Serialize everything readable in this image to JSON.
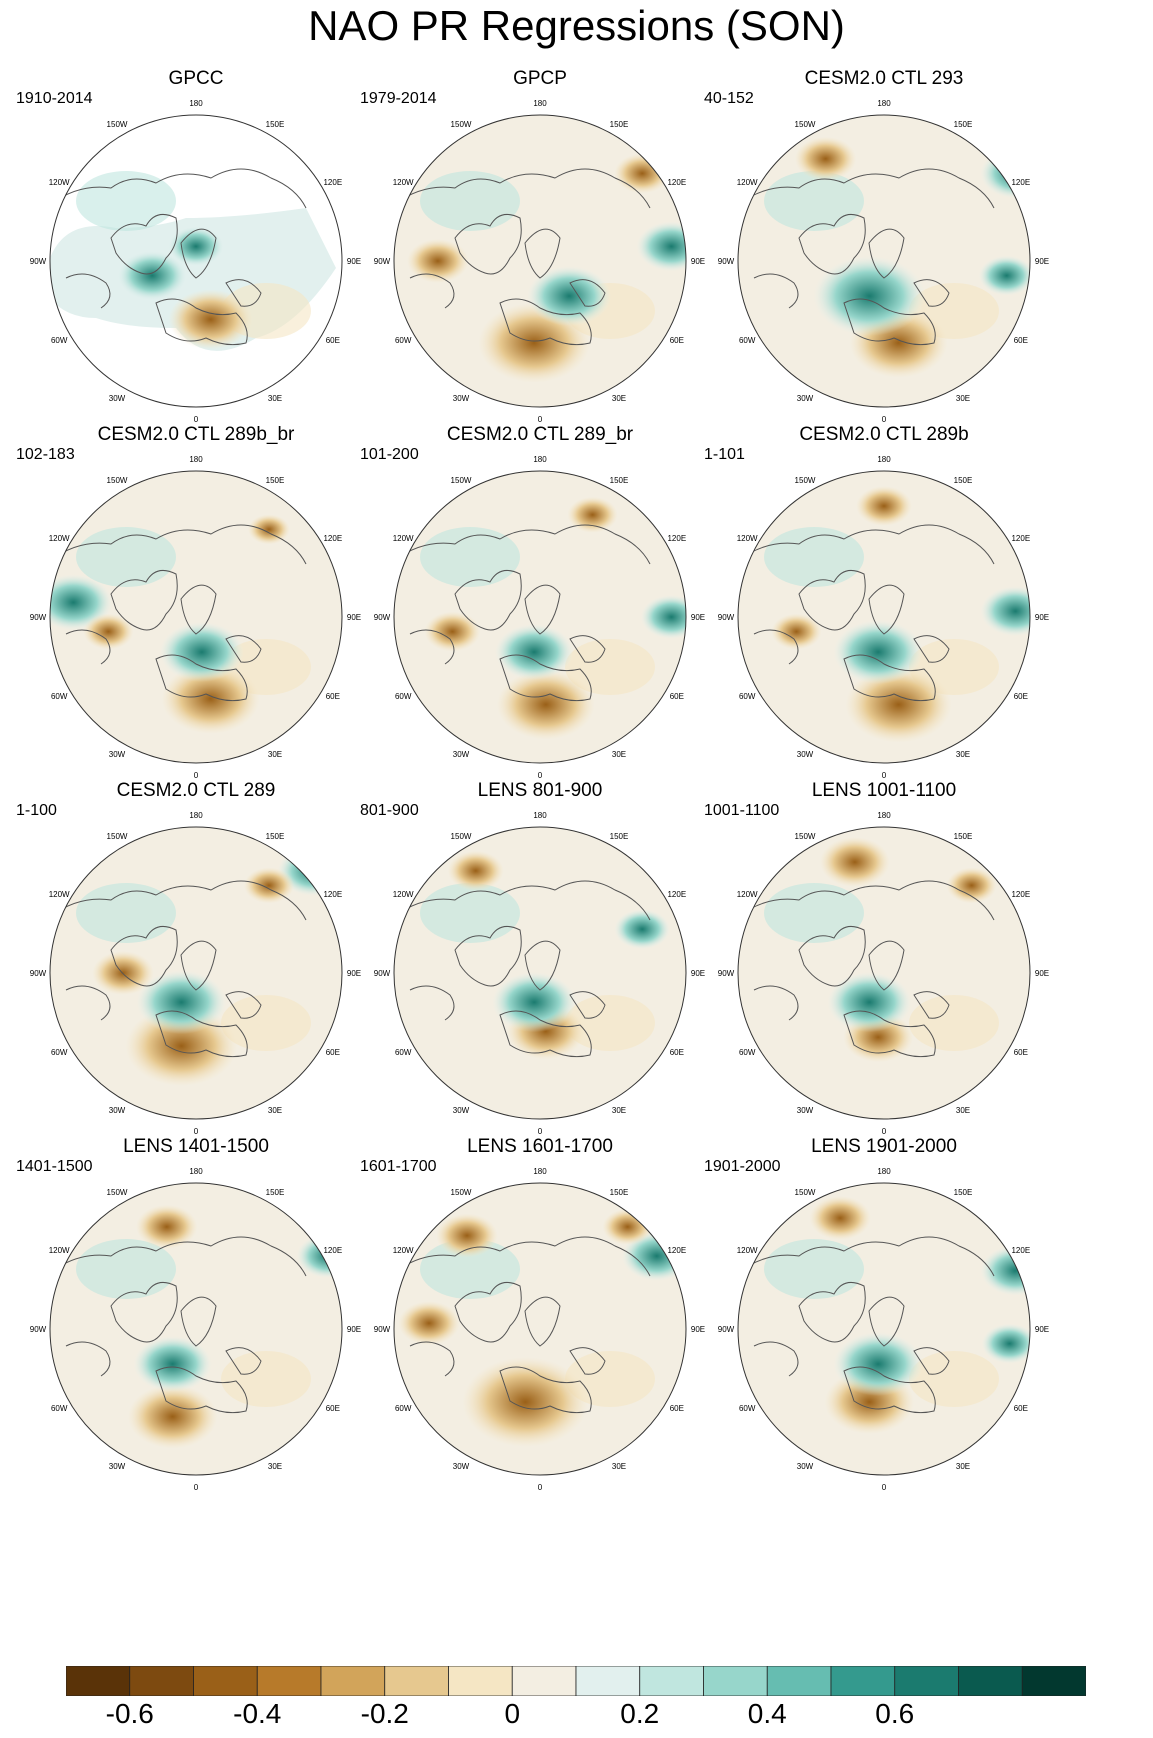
{
  "title": "NAO PR Regressions (SON)",
  "longitude_labels": [
    "180",
    "150E",
    "120E",
    "90E",
    "60E",
    "30E",
    "0",
    "30W",
    "60W",
    "90W",
    "120W",
    "150W"
  ],
  "panels": [
    {
      "title": "GPCC",
      "period": "1910-2014"
    },
    {
      "title": "GPCP",
      "period": "1979-2014"
    },
    {
      "title": "CESM2.0 CTL 293",
      "period": "40-152"
    },
    {
      "title": "CESM2.0 CTL 289b_br",
      "period": "102-183"
    },
    {
      "title": "CESM2.0 CTL 289_br",
      "period": "101-200"
    },
    {
      "title": "CESM2.0 CTL 289b",
      "period": "1-101"
    },
    {
      "title": "CESM2.0 CTL 289",
      "period": "1-100"
    },
    {
      "title": "LENS 801-900",
      "period": "801-900"
    },
    {
      "title": "LENS 1001-1100",
      "period": "1001-1100"
    },
    {
      "title": "LENS 1401-1500",
      "period": "1401-1500"
    },
    {
      "title": "LENS 1601-1700",
      "period": "1601-1700"
    },
    {
      "title": "LENS 1901-2000",
      "period": "1901-2000"
    }
  ],
  "colorbar": {
    "colors": [
      "#5a3308",
      "#7d4a10",
      "#9a6018",
      "#b77a2a",
      "#d2a45a",
      "#e6c88f",
      "#f5e6c4",
      "#f3eee2",
      "#e2f0ee",
      "#c0e6df",
      "#97d6cb",
      "#66bdb1",
      "#349a8e",
      "#1b7b6f",
      "#0a5a4f",
      "#02382f"
    ],
    "labels": [
      "-0.6",
      "-0.4",
      "-0.2",
      "0",
      "0.2",
      "0.4",
      "0.6"
    ]
  }
}
